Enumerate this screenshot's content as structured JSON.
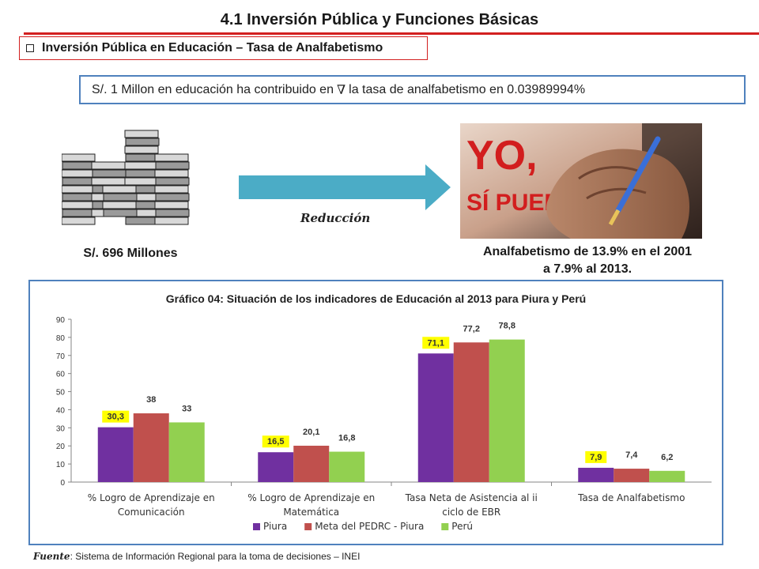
{
  "slide": {
    "title": "4.1 Inversión Pública y Funciones Básicas",
    "section": "Inversión Pública en Educación – Tasa de Analfabetismo",
    "statement_part1": "S/. 1 Millon  en educación ha contribuido en",
    "statement_symbol": "∇",
    "statement_part2": "la tasa de analfabetismo en 0.03989994%",
    "reduction_label": "Reducción",
    "millions_caption": "S/. 696 Millones",
    "illiteracy_caption_line1": "Analfabetismo de 13.9% en el 2001",
    "illiteracy_caption_line2": "a 7.9% al 2013.",
    "photo_text_line1": "YO,",
    "photo_text_line2": "SÍ PUEDO",
    "source_label": "Fuente",
    "source_text": ": Sistema de Información Regional para la toma de decisiones – INEI"
  },
  "colors": {
    "title_rule": "#d32020",
    "statement_border": "#4f81bd",
    "arrow": "#4bacc6",
    "highlight": "#ffff00"
  },
  "chart_data": {
    "type": "bar",
    "title": "Gráfico 04: Situación de los indicadores de Educación al 2013 para Piura y Perú",
    "categories": [
      [
        "% Logro de Aprendizaje en",
        "Comunicación"
      ],
      [
        "% Logro de Aprendizaje en",
        "Matemática"
      ],
      [
        "Tasa Neta de Asistencia al ii",
        "ciclo de EBR"
      ],
      [
        "Tasa de Analfabetismo"
      ]
    ],
    "series": [
      {
        "name": "Piura",
        "color": "#7030a0",
        "values": [
          30.3,
          16.5,
          71.1,
          7.9
        ],
        "labels": [
          "30,3",
          "16,5",
          "71,1",
          "7,9"
        ],
        "highlight": true
      },
      {
        "name": "Meta del PEDRC - Piura",
        "color": "#c0504d",
        "values": [
          38,
          20.1,
          77.2,
          7.4
        ],
        "labels": [
          "38",
          "20,1",
          "77,2",
          "7,4"
        ],
        "highlight": false
      },
      {
        "name": "Perú",
        "color": "#92d050",
        "values": [
          33,
          16.8,
          78.8,
          6.2
        ],
        "labels": [
          "33",
          "16,8",
          "78,8",
          "6,2"
        ],
        "highlight": false
      }
    ],
    "yticks": [
      "0",
      "10",
      "20",
      "30",
      "40",
      "50",
      "60",
      "70",
      "80",
      "90"
    ],
    "ylim": [
      0,
      90
    ],
    "legend_position": "bottom",
    "grid": false
  }
}
